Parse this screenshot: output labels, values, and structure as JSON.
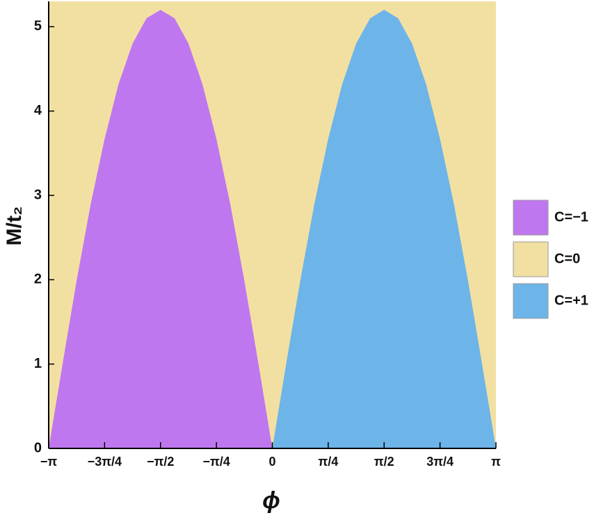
{
  "chart_data": {
    "type": "region",
    "xlabel": "ϕ",
    "ylabel": "M/t₂",
    "xlim": [
      -3.1416,
      3.1416
    ],
    "ylim": [
      0,
      5.3
    ],
    "xticks": [
      {
        "value": -3.1416,
        "label": "−π"
      },
      {
        "value": -2.3562,
        "label": "−3π/4"
      },
      {
        "value": -1.5708,
        "label": "−π/2"
      },
      {
        "value": -0.7854,
        "label": "−π/4"
      },
      0,
      {
        "value": 0.7854,
        "label": "π/4"
      },
      {
        "value": 1.5708,
        "label": "π/2"
      },
      {
        "value": 2.3562,
        "label": "3π/4"
      },
      {
        "value": 3.1416,
        "label": "π"
      }
    ],
    "yticks": [
      0,
      1,
      2,
      3,
      4,
      5
    ],
    "series": [
      {
        "name": "C=−1",
        "color": "#bf77ef",
        "x": [
          -3.142,
          -2.945,
          -2.749,
          -2.553,
          -2.356,
          -2.16,
          -1.963,
          -1.767,
          -1.571,
          -1.374,
          -1.178,
          -0.982,
          -0.785,
          -0.589,
          -0.393,
          -0.196,
          0
        ],
        "values": [
          0,
          1.01,
          1.99,
          2.89,
          3.67,
          4.32,
          4.8,
          5.1,
          5.2,
          5.1,
          4.8,
          4.32,
          3.67,
          2.89,
          1.99,
          1.01,
          0
        ]
      },
      {
        "name": "C=0",
        "color": "#f2e0a2",
        "fill": "background"
      },
      {
        "name": "C=+1",
        "color": "#6db4e9",
        "x": [
          0,
          0.196,
          0.393,
          0.589,
          0.785,
          0.982,
          1.178,
          1.374,
          1.571,
          1.767,
          1.963,
          2.16,
          2.356,
          2.553,
          2.749,
          2.945,
          3.142
        ],
        "values": [
          0,
          1.01,
          1.99,
          2.89,
          3.67,
          4.32,
          4.8,
          5.1,
          5.2,
          5.1,
          4.8,
          4.32,
          3.67,
          2.89,
          1.99,
          1.01,
          0
        ]
      }
    ]
  }
}
